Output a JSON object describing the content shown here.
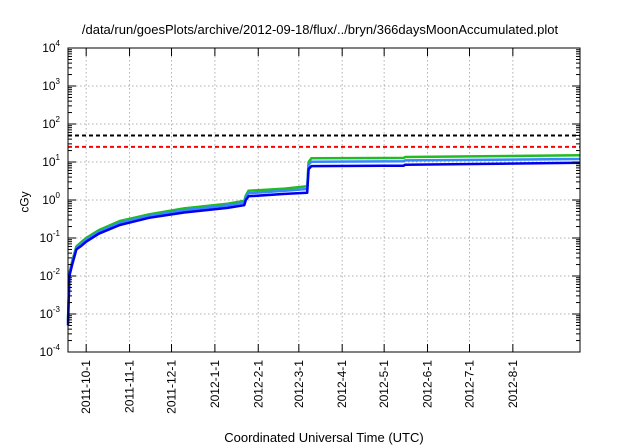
{
  "chart_data": {
    "type": "line",
    "title": "/data/run/goesPlots/archive/2012-09-18/flux/../bryn/366daysMoonAccumulated.plot",
    "xlabel": "Coordinated Universal Time (UTC)",
    "ylabel": "cGy",
    "yscale": "log",
    "ylim": [
      0.0001,
      10000
    ],
    "xlim": [
      "2011-09-18",
      "2012-09-18"
    ],
    "grid": true,
    "yticks": [
      {
        "mant": "10",
        "exp": "-4",
        "value": 0.0001
      },
      {
        "mant": "10",
        "exp": "-3",
        "value": 0.001
      },
      {
        "mant": "10",
        "exp": "-2",
        "value": 0.01
      },
      {
        "mant": "10",
        "exp": "-1",
        "value": 0.1
      },
      {
        "mant": "10",
        "exp": "0",
        "value": 1
      },
      {
        "mant": "10",
        "exp": "1",
        "value": 10
      },
      {
        "mant": "10",
        "exp": "2",
        "value": 100
      },
      {
        "mant": "10",
        "exp": "3",
        "value": 1000
      },
      {
        "mant": "10",
        "exp": "4",
        "value": 10000
      }
    ],
    "xticks": [
      "2011-10-1",
      "2011-11-1",
      "2011-12-1",
      "2012-1-1",
      "2012-2-1",
      "2012-3-1",
      "2012-4-1",
      "2012-5-1",
      "2012-6-1",
      "2012-7-1",
      "2012-8-1"
    ],
    "hlines": [
      {
        "value": 50,
        "color": "#000000",
        "style": "dashed"
      },
      {
        "value": 25,
        "color": "#ff0000",
        "style": "dashed"
      }
    ],
    "series": [
      {
        "color": "#22bb22",
        "x": [
          "2011-09-18",
          "2011-09-19",
          "2011-09-21",
          "2011-09-24",
          "2011-09-27",
          "2011-10-01",
          "2011-10-10",
          "2011-10-25",
          "2011-11-15",
          "2011-12-10",
          "2012-01-10",
          "2012-01-22",
          "2012-01-23",
          "2012-01-25",
          "2012-02-20",
          "2012-03-07",
          "2012-03-08",
          "2012-03-10",
          "2012-05-15",
          "2012-05-16",
          "2012-09-18"
        ],
        "y": [
          0.0007,
          0.012,
          0.025,
          0.06,
          0.075,
          0.1,
          0.16,
          0.28,
          0.42,
          0.6,
          0.8,
          0.95,
          1.3,
          1.75,
          2.0,
          2.3,
          10,
          12.5,
          12.8,
          13.5,
          15
        ]
      },
      {
        "color": "#3388ff",
        "x": [
          "2011-09-18",
          "2011-09-19",
          "2011-09-21",
          "2011-09-24",
          "2011-09-27",
          "2011-10-01",
          "2011-10-10",
          "2011-10-25",
          "2011-11-15",
          "2011-12-10",
          "2012-01-10",
          "2012-01-22",
          "2012-01-23",
          "2012-01-25",
          "2012-02-20",
          "2012-03-07",
          "2012-03-08",
          "2012-03-10",
          "2012-05-15",
          "2012-05-16",
          "2012-09-18"
        ],
        "y": [
          0.0006,
          0.011,
          0.022,
          0.055,
          0.068,
          0.09,
          0.145,
          0.25,
          0.38,
          0.54,
          0.72,
          0.85,
          1.15,
          1.5,
          1.75,
          1.95,
          8.5,
          10.2,
          10.5,
          11.0,
          12
        ]
      },
      {
        "color": "#0000ee",
        "x": [
          "2011-09-18",
          "2011-09-19",
          "2011-09-21",
          "2011-09-24",
          "2011-09-27",
          "2011-10-01",
          "2011-10-10",
          "2011-10-25",
          "2011-11-15",
          "2011-12-10",
          "2012-01-10",
          "2012-01-22",
          "2012-01-23",
          "2012-01-25",
          "2012-02-20",
          "2012-03-07",
          "2012-03-08",
          "2012-03-10",
          "2012-05-15",
          "2012-05-16",
          "2012-09-18"
        ],
        "y": [
          0.0005,
          0.01,
          0.02,
          0.05,
          0.06,
          0.08,
          0.13,
          0.22,
          0.34,
          0.47,
          0.62,
          0.73,
          0.98,
          1.25,
          1.45,
          1.55,
          6.5,
          7.8,
          8.0,
          8.5,
          9.5
        ]
      }
    ]
  }
}
